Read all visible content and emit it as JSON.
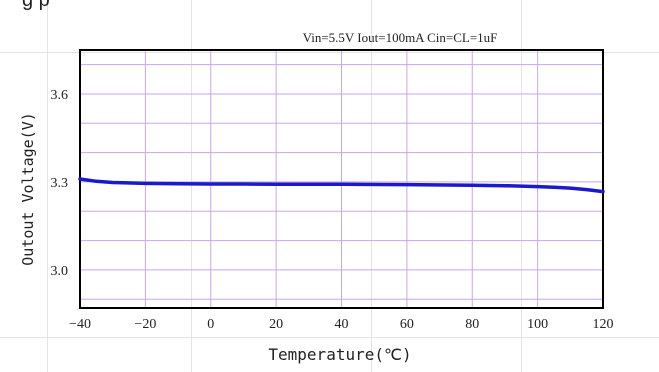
{
  "caption_fragment": "g                                                         p",
  "chart_data": {
    "type": "line",
    "title": "Vin=5.5V Iout=100mA Cin=CL=1uF",
    "xlabel": "Temperature(℃)",
    "ylabel": "Outout Voltage(V)",
    "xlim": [
      -40,
      120
    ],
    "ylim": [
      2.87,
      3.75
    ],
    "xticks": [
      -40,
      -20,
      0,
      20,
      40,
      60,
      80,
      100,
      120
    ],
    "xtick_labels": [
      "−40",
      "−20",
      "0",
      "20",
      "40",
      "60",
      "80",
      "100",
      "120"
    ],
    "yticks": [
      3.0,
      3.3,
      3.6
    ],
    "ytick_labels": [
      "3.0",
      "3.3",
      "3.6"
    ],
    "grid": true,
    "grid_color": "#c9a6e8",
    "series": [
      {
        "color": "#1a1acc",
        "x": [
          -40,
          -35,
          -30,
          -20,
          -10,
          0,
          10,
          20,
          40,
          60,
          80,
          90,
          100,
          105,
          110,
          115,
          120
        ],
        "y": [
          3.31,
          3.302,
          3.298,
          3.295,
          3.294,
          3.293,
          3.293,
          3.292,
          3.292,
          3.291,
          3.289,
          3.287,
          3.284,
          3.282,
          3.279,
          3.274,
          3.267
        ]
      }
    ]
  }
}
